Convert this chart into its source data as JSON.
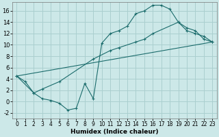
{
  "xlabel": "Humidex (Indice chaleur)",
  "bg_color": "#cce8e8",
  "grid_color": "#aacfcf",
  "line_color": "#1a6b6b",
  "xlim": [
    -0.5,
    23.5
  ],
  "ylim": [
    -3,
    17.5
  ],
  "xticks": [
    0,
    1,
    2,
    3,
    4,
    5,
    6,
    7,
    8,
    9,
    10,
    11,
    12,
    13,
    14,
    15,
    16,
    17,
    18,
    19,
    20,
    21,
    22,
    23
  ],
  "yticks": [
    -2,
    0,
    2,
    4,
    6,
    8,
    10,
    12,
    14,
    16
  ],
  "line1_x": [
    0,
    1,
    2,
    3,
    4,
    5,
    6,
    7,
    8,
    9,
    10,
    11,
    12,
    13,
    14,
    15,
    16,
    17,
    18,
    19,
    20,
    21,
    22,
    23
  ],
  "line1_y": [
    4.5,
    3.5,
    1.5,
    0.5,
    0.2,
    -0.3,
    -1.5,
    -1.2,
    3.2,
    0.5,
    10.3,
    12.0,
    12.5,
    13.3,
    15.5,
    16.0,
    17.0,
    17.0,
    16.3,
    14.0,
    13.0,
    12.5,
    11.0,
    10.5
  ],
  "line2_x": [
    0,
    2,
    3,
    5,
    9,
    11,
    12,
    14,
    15,
    16,
    19,
    20,
    21,
    22,
    23
  ],
  "line2_y": [
    4.5,
    1.5,
    2.2,
    3.5,
    7.5,
    9.0,
    9.5,
    10.5,
    11.0,
    12.0,
    14.0,
    12.5,
    12.0,
    11.5,
    10.5
  ],
  "line3_x": [
    0,
    23
  ],
  "line3_y": [
    4.5,
    10.5
  ]
}
